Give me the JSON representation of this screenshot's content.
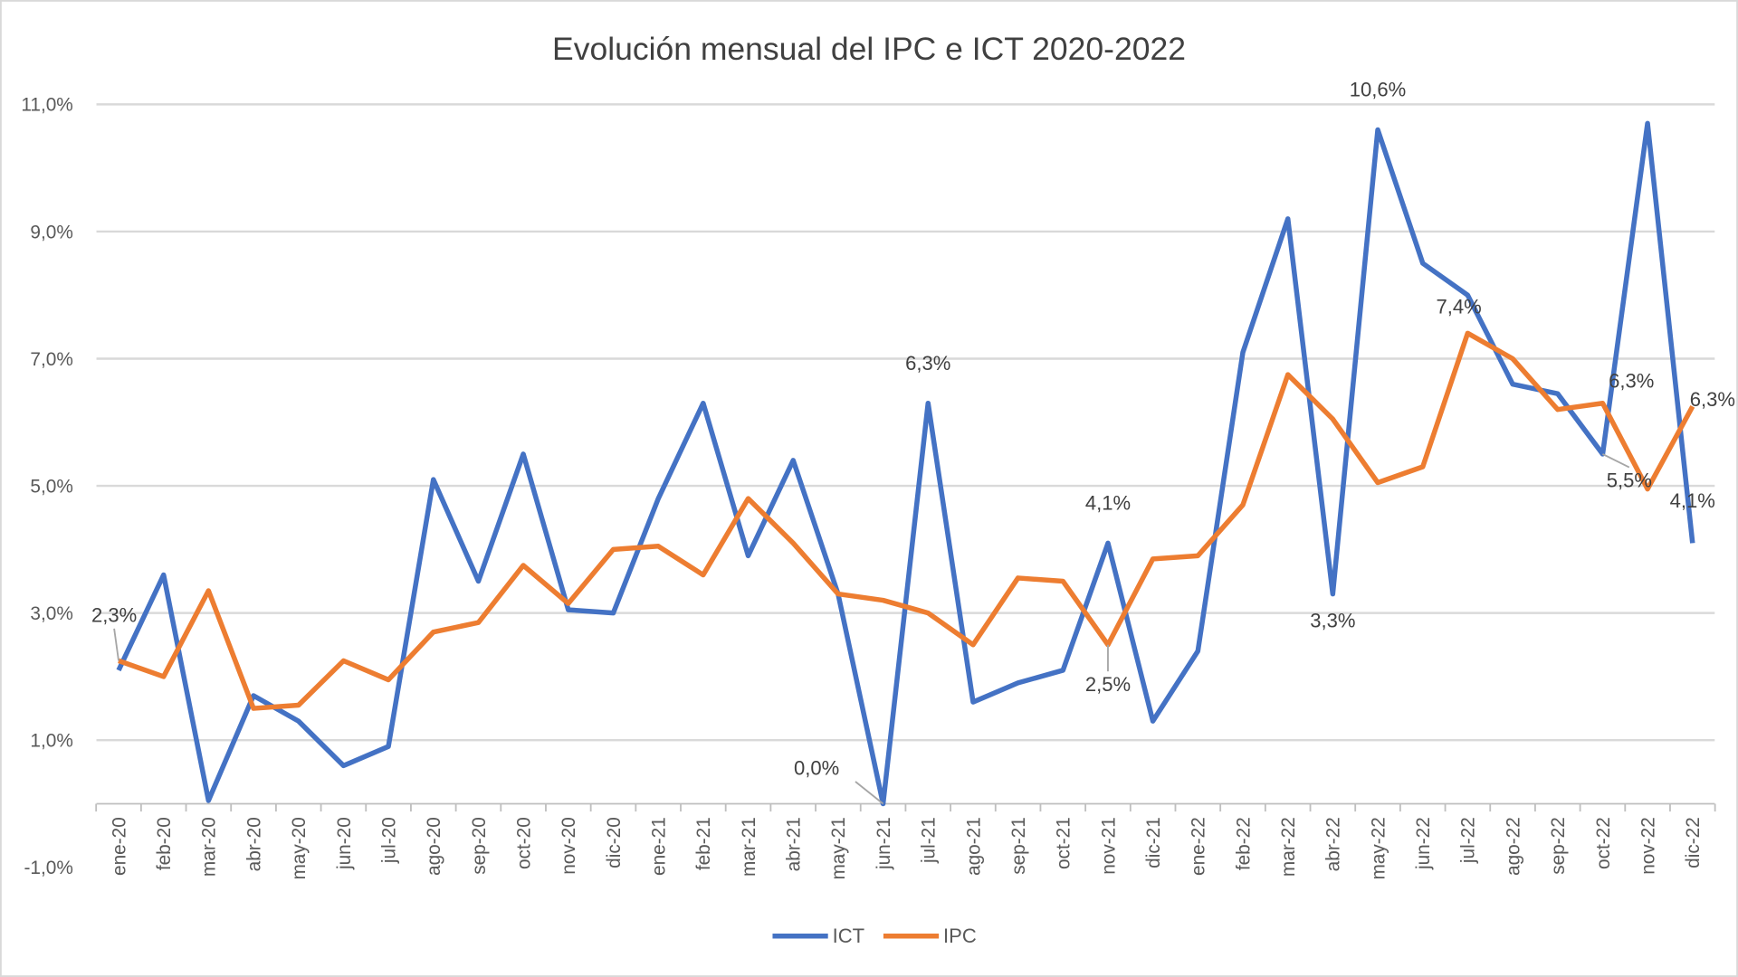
{
  "chart_data": {
    "type": "line",
    "title": "Evolución mensual del IPC e ICT 2020-2022",
    "xlabel": "",
    "ylabel": "",
    "ylim": [
      -1.0,
      11.0
    ],
    "yticks": [
      "11,0%",
      "9,0%",
      "7,0%",
      "5,0%",
      "3,0%",
      "1,0%",
      "-1,0%"
    ],
    "ytick_values": [
      11,
      9,
      7,
      5,
      3,
      1,
      -1
    ],
    "grid": true,
    "legend_position": "bottom",
    "categories": [
      "ene-20",
      "feb-20",
      "mar-20",
      "abr-20",
      "may-20",
      "jun-20",
      "jul-20",
      "ago-20",
      "sep-20",
      "oct-20",
      "nov-20",
      "dic-20",
      "ene-21",
      "feb-21",
      "mar-21",
      "abr-21",
      "may-21",
      "jun-21",
      "jul-21",
      "ago-21",
      "sep-21",
      "oct-21",
      "nov-21",
      "dic-21",
      "ene-22",
      "feb-22",
      "mar-22",
      "abr-22",
      "may-22",
      "jun-22",
      "jul-22",
      "ago-22",
      "sep-22",
      "oct-22",
      "nov-22",
      "dic-22"
    ],
    "series": [
      {
        "name": "ICT",
        "color": "#4472C4",
        "values": [
          2.1,
          3.6,
          0.05,
          1.7,
          1.3,
          0.6,
          0.9,
          5.1,
          3.5,
          5.5,
          3.05,
          3.0,
          4.8,
          6.3,
          3.9,
          5.4,
          3.3,
          0.0,
          6.3,
          1.6,
          1.9,
          2.1,
          4.1,
          1.3,
          2.4,
          7.1,
          9.2,
          3.3,
          10.6,
          8.5,
          8.0,
          6.6,
          6.45,
          5.5,
          10.7,
          4.1
        ]
      },
      {
        "name": "IPC",
        "color": "#ED7D31",
        "values": [
          2.25,
          2.0,
          3.35,
          1.5,
          1.55,
          2.25,
          1.95,
          2.7,
          2.85,
          3.75,
          3.15,
          4.0,
          4.05,
          3.6,
          4.8,
          4.1,
          3.3,
          3.2,
          3.0,
          2.5,
          3.55,
          3.5,
          2.5,
          3.85,
          3.9,
          4.7,
          6.75,
          6.05,
          5.05,
          5.3,
          7.4,
          7.0,
          6.2,
          6.3,
          4.95,
          6.25
        ]
      }
    ],
    "data_labels": [
      {
        "series": 1,
        "index": 0,
        "text": "2,3%"
      },
      {
        "series": 0,
        "index": 17,
        "text": "0,0%"
      },
      {
        "series": 0,
        "index": 18,
        "text": "6,3%"
      },
      {
        "series": 0,
        "index": 22,
        "text": "4,1%"
      },
      {
        "series": 1,
        "index": 22,
        "text": "2,5%"
      },
      {
        "series": 0,
        "index": 27,
        "text": "3,3%"
      },
      {
        "series": 0,
        "index": 28,
        "text": "10,6%"
      },
      {
        "series": 1,
        "index": 30,
        "text": "7,4%"
      },
      {
        "series": 1,
        "index": 33,
        "text": "6,3%"
      },
      {
        "series": 0,
        "index": 33,
        "text": "5,5%"
      },
      {
        "series": 1,
        "index": 35,
        "text": "6,3%"
      },
      {
        "series": 0,
        "index": 35,
        "text": "4,1%"
      }
    ]
  }
}
